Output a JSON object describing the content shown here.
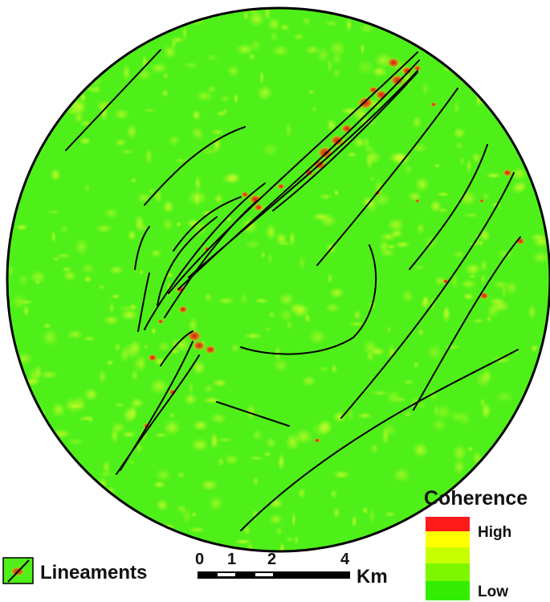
{
  "legend": {
    "title": "Coherence",
    "high_label": "High",
    "low_label": "Low",
    "ramp_colors": [
      "#ff1a1a",
      "#ffff00",
      "#c8ff00",
      "#7cf700",
      "#33ee00"
    ]
  },
  "lineaments_legend": {
    "label": "Lineaments"
  },
  "scale_bar": {
    "ticks": [
      "0",
      "1",
      "2",
      "4"
    ],
    "unit": "Km"
  },
  "colors": {
    "background_green": "#4ff01a",
    "high_red": "#e5191a",
    "mid_yellow": "#f2ff1a",
    "lineament": "#000000"
  }
}
